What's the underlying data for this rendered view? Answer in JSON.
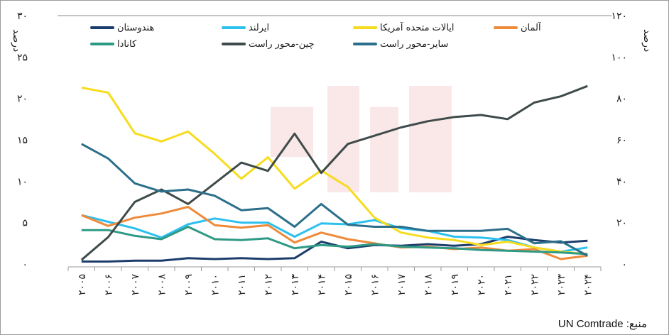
{
  "chart_data": {
    "type": "line",
    "title": "",
    "ylabel_left": "درصد",
    "ylabel_right": "درصد",
    "x": [
      "۲۰۰۵",
      "۲۰۰۶",
      "۲۰۰۷",
      "۲۰۰۸",
      "۲۰۰۹",
      "۲۰۱۰",
      "۲۰۱۱",
      "۲۰۱۲",
      "۲۰۱۳",
      "۲۰۱۴",
      "۲۰۱۵",
      "۲۰۱۶",
      "۲۰۱۷",
      "۲۰۱۸",
      "۲۰۱۹",
      "۲۰۲۰",
      "۲۰۲۱",
      "۲۰۲۲",
      "۲۰۲۳",
      "۲۰۲۴"
    ],
    "ylim_left": [
      0,
      30
    ],
    "ylim_right": [
      0,
      120
    ],
    "yticks_left": [
      "۰",
      "۵",
      "۱۰",
      "۱۵",
      "۲۰",
      "۲۵",
      "۳۰"
    ],
    "yticks_right": [
      "۰",
      "۲۰",
      "۴۰",
      "۶۰",
      "۸۰",
      "۱۰۰",
      "۱۲۰"
    ],
    "legend_position": "top",
    "series": [
      {
        "name": "هندوستان",
        "color": "#1b3d6b",
        "axis": "left",
        "values": [
          0.3,
          0.3,
          0.4,
          0.4,
          0.7,
          0.6,
          0.7,
          0.6,
          0.7,
          2.7,
          1.9,
          2.3,
          2.2,
          2.4,
          2.2,
          2.4,
          3.3,
          2.9,
          2.6,
          2.8
        ]
      },
      {
        "name": "ایرلند",
        "color": "#2cc0ee",
        "axis": "left",
        "values": [
          5.9,
          5.1,
          4.3,
          3.2,
          4.8,
          5.5,
          5.0,
          5.0,
          3.3,
          4.9,
          4.8,
          5.3,
          4.3,
          4.0,
          3.3,
          3.2,
          2.9,
          2.0,
          1.5,
          2.0
        ]
      },
      {
        "name": "ایالات متحده آمریکا",
        "color": "#f7dc1e",
        "axis": "left",
        "values": [
          21.3,
          20.7,
          15.8,
          14.8,
          16.0,
          13.3,
          10.3,
          12.9,
          9.1,
          11.3,
          9.3,
          5.6,
          3.8,
          3.2,
          2.9,
          2.3,
          2.7,
          2.0,
          1.5,
          1.2
        ]
      },
      {
        "name": "آلمان",
        "color": "#ee8a3a",
        "axis": "left",
        "values": [
          5.9,
          4.6,
          5.6,
          6.1,
          6.9,
          4.7,
          4.4,
          4.7,
          2.6,
          3.8,
          3.0,
          2.5,
          2.0,
          2.1,
          1.8,
          2.0,
          1.6,
          1.8,
          0.6,
          1.0
        ]
      },
      {
        "name": "کانادا",
        "color": "#2e9a86",
        "axis": "left",
        "values": [
          4.1,
          4.1,
          3.4,
          3.0,
          4.5,
          3.0,
          2.9,
          3.1,
          1.9,
          2.3,
          2.1,
          2.4,
          2.1,
          2.0,
          1.9,
          1.7,
          1.6,
          1.5,
          1.4,
          1.2
        ]
      },
      {
        "name": "چین-محور راست",
        "color": "#3f4b4b",
        "axis": "right",
        "values": [
          2,
          13,
          30,
          36,
          29,
          39,
          49,
          45,
          63,
          44,
          58,
          62,
          66,
          69,
          71,
          72,
          70,
          78,
          81,
          86
        ]
      },
      {
        "name": "سایر-محور راست",
        "color": "#2b6f8a",
        "axis": "right",
        "values": [
          58,
          51,
          39,
          35,
          36,
          33,
          26,
          27,
          18,
          29,
          19,
          18,
          18,
          16,
          16,
          16,
          17,
          10,
          11,
          4
        ]
      }
    ],
    "source": "منبع: UN Comtrade"
  }
}
